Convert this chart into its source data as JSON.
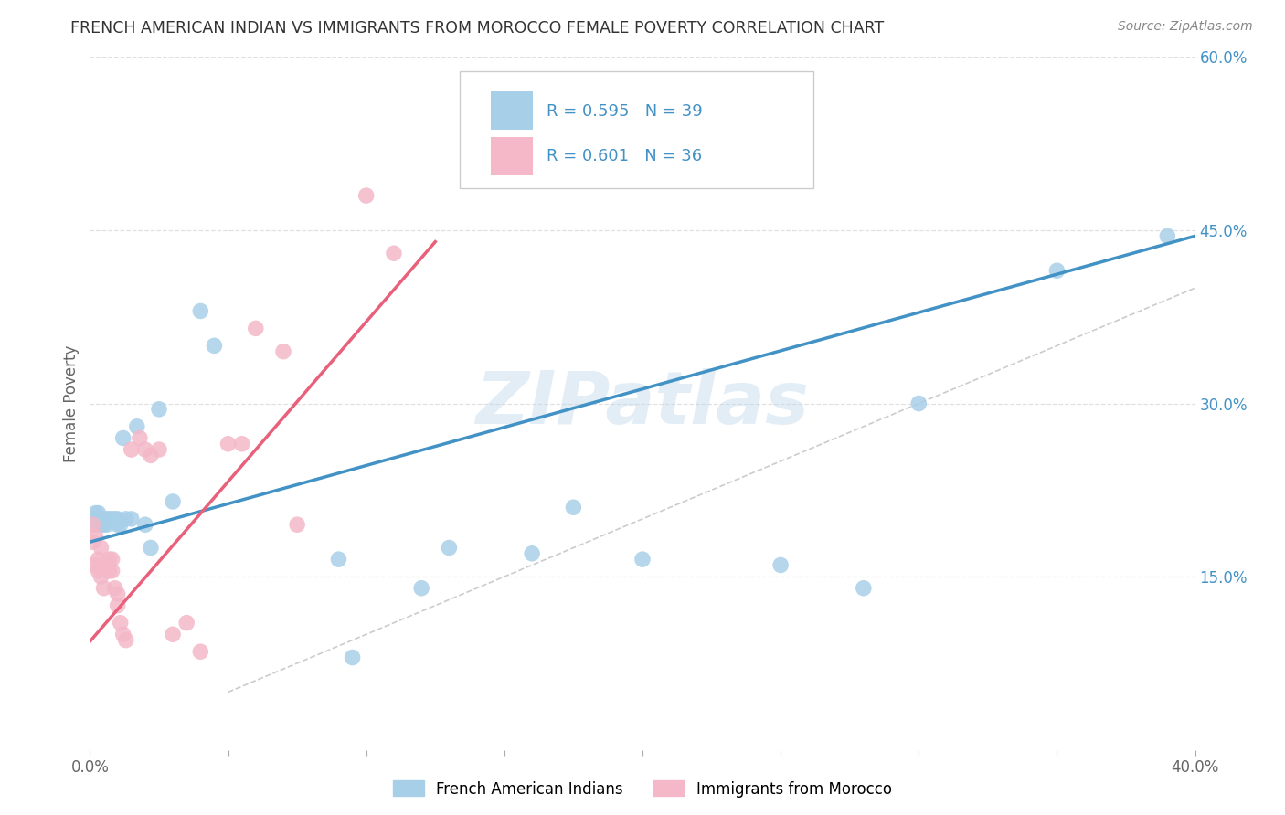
{
  "title": "FRENCH AMERICAN INDIAN VS IMMIGRANTS FROM MOROCCO FEMALE POVERTY CORRELATION CHART",
  "source": "Source: ZipAtlas.com",
  "ylabel": "Female Poverty",
  "x_min": 0.0,
  "x_max": 0.4,
  "y_min": 0.0,
  "y_max": 0.6,
  "watermark": "ZIPatlas",
  "blue_color": "#a8cfe8",
  "pink_color": "#f4b8c8",
  "blue_line_color": "#4292c6",
  "pink_line_color": "#e8607a",
  "diagonal_color": "#cccccc",
  "text_color_blue": "#4292c6",
  "legend_R1": "R = 0.595",
  "legend_N1": "N = 39",
  "legend_R2": "R = 0.601",
  "legend_N2": "N = 36",
  "legend_label1": "French American Indians",
  "legend_label2": "Immigrants from Morocco",
  "blue_scatter_x": [
    0.001,
    0.002,
    0.002,
    0.003,
    0.003,
    0.004,
    0.004,
    0.005,
    0.005,
    0.006,
    0.006,
    0.007,
    0.008,
    0.009,
    0.01,
    0.01,
    0.011,
    0.012,
    0.013,
    0.015,
    0.017,
    0.02,
    0.022,
    0.025,
    0.03,
    0.04,
    0.045,
    0.09,
    0.095,
    0.12,
    0.13,
    0.16,
    0.175,
    0.2,
    0.25,
    0.28,
    0.3,
    0.35,
    0.39
  ],
  "blue_scatter_y": [
    0.2,
    0.205,
    0.195,
    0.205,
    0.2,
    0.195,
    0.2,
    0.2,
    0.195,
    0.2,
    0.195,
    0.2,
    0.2,
    0.2,
    0.2,
    0.195,
    0.195,
    0.27,
    0.2,
    0.2,
    0.28,
    0.195,
    0.175,
    0.295,
    0.215,
    0.38,
    0.35,
    0.165,
    0.08,
    0.14,
    0.175,
    0.17,
    0.21,
    0.165,
    0.16,
    0.14,
    0.3,
    0.415,
    0.445
  ],
  "pink_scatter_x": [
    0.001,
    0.001,
    0.002,
    0.002,
    0.003,
    0.003,
    0.004,
    0.004,
    0.005,
    0.005,
    0.006,
    0.007,
    0.007,
    0.008,
    0.008,
    0.009,
    0.01,
    0.01,
    0.011,
    0.012,
    0.013,
    0.015,
    0.018,
    0.02,
    0.022,
    0.025,
    0.03,
    0.035,
    0.04,
    0.05,
    0.055,
    0.06,
    0.07,
    0.075,
    0.1,
    0.11
  ],
  "pink_scatter_y": [
    0.195,
    0.18,
    0.185,
    0.16,
    0.165,
    0.155,
    0.175,
    0.15,
    0.16,
    0.14,
    0.155,
    0.165,
    0.155,
    0.165,
    0.155,
    0.14,
    0.135,
    0.125,
    0.11,
    0.1,
    0.095,
    0.26,
    0.27,
    0.26,
    0.255,
    0.26,
    0.1,
    0.11,
    0.085,
    0.265,
    0.265,
    0.365,
    0.345,
    0.195,
    0.48,
    0.43
  ],
  "blue_line_x": [
    0.0,
    0.4
  ],
  "blue_line_y": [
    0.18,
    0.445
  ],
  "pink_line_x": [
    -0.005,
    0.125
  ],
  "pink_line_y": [
    0.08,
    0.44
  ],
  "diag_line_x": [
    0.05,
    0.4
  ],
  "diag_line_y": [
    0.05,
    0.4
  ],
  "background_color": "#ffffff",
  "grid_color": "#e0e0e0"
}
